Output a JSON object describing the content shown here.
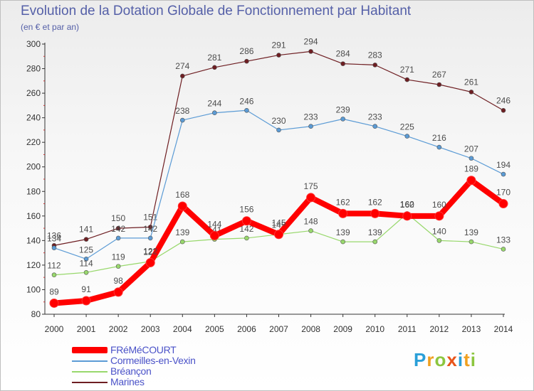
{
  "title": "Evolution de la Dotation Globale de Fonctionnement par Habitant",
  "subtitle": "(en € et par an)",
  "logo": {
    "letters": [
      "P",
      "r",
      "o",
      "x",
      "i",
      "t",
      "i"
    ],
    "colors": [
      "#2a9fd8",
      "#f0a020",
      "#8cc63f",
      "#e8541a",
      "#2a9fd8",
      "#f0a020",
      "#8cc63f"
    ]
  },
  "chart_data": {
    "type": "line",
    "x": [
      "2000",
      "2001",
      "2002",
      "2003",
      "2004",
      "2005",
      "2006",
      "2007",
      "2008",
      "2009",
      "2010",
      "2011",
      "2012",
      "2013",
      "2014"
    ],
    "ylim": [
      80,
      300
    ],
    "yticks": [
      "80",
      "100",
      "120",
      "140",
      "160",
      "180",
      "200",
      "220",
      "240",
      "260",
      "280",
      "300"
    ],
    "grid": false,
    "legend_position": "bottom-left",
    "series": [
      {
        "name": "Marines",
        "color": "#6e1e22",
        "values": [
          136,
          141,
          150,
          151,
          274,
          281,
          286,
          291,
          294,
          284,
          283,
          271,
          267,
          261,
          246
        ]
      },
      {
        "name": "Cormeilles-en-Vexin",
        "color": "#5b9bd5",
        "values": [
          134,
          125,
          142,
          142,
          238,
          244,
          246,
          230,
          233,
          239,
          233,
          225,
          216,
          207,
          194
        ]
      },
      {
        "name": "Bréançon",
        "color": "#98d86c",
        "values": [
          112,
          114,
          119,
          123,
          139,
          141,
          142,
          145,
          148,
          139,
          139,
          162,
          140,
          139,
          133
        ]
      },
      {
        "name": "FRéMéCOURT",
        "color": "#ff0000",
        "values": [
          89,
          91,
          98,
          122,
          168,
          144,
          156,
          145,
          175,
          162,
          162,
          160,
          160,
          189,
          170
        ]
      }
    ]
  },
  "legend": [
    "FRéMéCOURT",
    "Cormeilles-en-Vexin",
    "Bréançon",
    "Marines"
  ]
}
